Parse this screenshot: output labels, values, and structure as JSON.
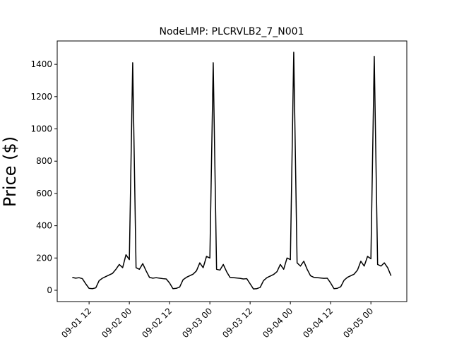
{
  "chart_data": {
    "type": "line",
    "title": "NodeLMP: PLCRVLB2_7_N001",
    "y_label": "Price ($)",
    "color": "#000000",
    "x": [
      7,
      8,
      9,
      10,
      11,
      12,
      13,
      14,
      15,
      16,
      17,
      18,
      19,
      20,
      21,
      22,
      23,
      24,
      25,
      26,
      27,
      28,
      29,
      30,
      31,
      32,
      33,
      34,
      35,
      36,
      37,
      38,
      39,
      40,
      41,
      42,
      43,
      44,
      45,
      46,
      47,
      48,
      49,
      50,
      51,
      52,
      53,
      54,
      55,
      56,
      57,
      58,
      59,
      60,
      61,
      62,
      63,
      64,
      65,
      66,
      67,
      68,
      69,
      70,
      71,
      72,
      73,
      74,
      75,
      76,
      77,
      78,
      79,
      80,
      81,
      82,
      83,
      84,
      85,
      86,
      87,
      88,
      89,
      90,
      91,
      92,
      93,
      94,
      95,
      96,
      97,
      98,
      99,
      100,
      101,
      102
    ],
    "values": [
      80,
      75,
      78,
      72,
      40,
      12,
      10,
      15,
      60,
      75,
      85,
      95,
      105,
      130,
      160,
      140,
      220,
      190,
      1410,
      140,
      130,
      165,
      120,
      80,
      75,
      78,
      75,
      72,
      70,
      45,
      10,
      12,
      20,
      65,
      80,
      90,
      100,
      120,
      170,
      140,
      210,
      200,
      1410,
      130,
      125,
      160,
      115,
      80,
      78,
      76,
      74,
      70,
      72,
      40,
      8,
      10,
      18,
      60,
      78,
      88,
      98,
      115,
      160,
      130,
      200,
      190,
      1475,
      170,
      150,
      180,
      130,
      90,
      80,
      78,
      76,
      74,
      75,
      45,
      10,
      12,
      22,
      62,
      80,
      90,
      100,
      125,
      180,
      150,
      210,
      195,
      1450,
      160,
      150,
      170,
      140,
      90
    ],
    "xlim": [
      2.5,
      106.7
    ],
    "xticks": [
      {
        "value": 12,
        "label": "09-01 12"
      },
      {
        "value": 24,
        "label": "09-02 00"
      },
      {
        "value": 36,
        "label": "09-02 12"
      },
      {
        "value": 48,
        "label": "09-03 00"
      },
      {
        "value": 60,
        "label": "09-03 12"
      },
      {
        "value": 72,
        "label": "09-04 00"
      },
      {
        "value": 84,
        "label": "09-04 12"
      },
      {
        "value": 96,
        "label": "09-05 00"
      }
    ],
    "ylim": [
      -70,
      1545
    ],
    "yticks": [
      0,
      200,
      400,
      600,
      800,
      1000,
      1200,
      1400
    ]
  }
}
